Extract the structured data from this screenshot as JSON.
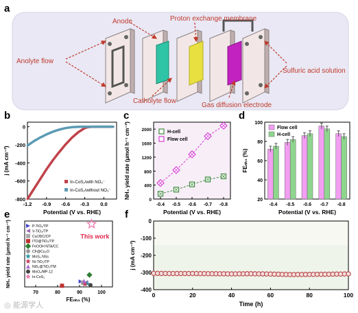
{
  "panel_a": {
    "letter": "a",
    "labels": {
      "anode": "Anode",
      "membrane": "Proton exchange membrane",
      "anolyte": "Anolyte flow",
      "sulfuric": "Sulfuric acid solution",
      "catholyte": "Catholyte flow",
      "gde": "Gas diffusion electrode"
    },
    "colors": {
      "background": "#e9e8f4",
      "label": "#c0392b",
      "plate": "#f2e7e6",
      "anode_sheet": "#2ec4a5",
      "membrane_sheet": "#e8e041",
      "gde_sheet": "#c222c0"
    }
  },
  "chart_data": [
    {
      "id": "b",
      "type": "line",
      "letter": "b",
      "xlabel": "Potential (V vs. RHE)",
      "ylabel": "j (mA cm⁻²)",
      "xlim": [
        -1.2,
        0.2
      ],
      "ylim": [
        -800,
        50
      ],
      "xticks": [
        "-1.2",
        "-0.9",
        "-0.6",
        "-0.3",
        "0.0"
      ],
      "xtick_values": [
        -1.2,
        -0.9,
        -0.6,
        -0.3,
        0.0
      ],
      "yticks": [
        "0",
        "-200",
        "-400",
        "-600",
        "-800"
      ],
      "ytick_values": [
        0,
        -200,
        -400,
        -600,
        -800
      ],
      "legend_position": "bottom-right",
      "series": [
        {
          "name": "In-CoS₂/with NO₃⁻",
          "color": "#c0424a",
          "x": [
            -1.2,
            -1.1,
            -1.0,
            -0.9,
            -0.8,
            -0.7,
            -0.6,
            -0.5,
            -0.4,
            -0.3,
            -0.25,
            -0.2,
            -0.1,
            0.0,
            0.15
          ],
          "y": [
            -800,
            -690,
            -580,
            -470,
            -370,
            -280,
            -195,
            -120,
            -60,
            -15,
            -5,
            -1,
            0,
            0,
            0
          ]
        },
        {
          "name": "In-CoS₂/without NO₃⁻",
          "color": "#5b9ab4",
          "x": [
            -1.2,
            -1.1,
            -1.0,
            -0.9,
            -0.8,
            -0.7,
            -0.6,
            -0.5,
            -0.4,
            -0.3,
            -0.25,
            -0.2,
            -0.1,
            0.0,
            0.15
          ],
          "y": [
            -210,
            -160,
            -120,
            -85,
            -55,
            -32,
            -15,
            -5,
            -1,
            0,
            0,
            0,
            0,
            0,
            0
          ]
        }
      ]
    },
    {
      "id": "c",
      "type": "line",
      "letter": "c",
      "xlabel": "Potential (V vs. RHE)",
      "ylabel": "NH₃ yield rate (μmol h⁻¹ cm⁻²)",
      "categories": [
        "-0.4",
        "-0.5",
        "-0.6",
        "-0.7",
        "-0.8"
      ],
      "ylim": [
        0,
        2200
      ],
      "yticks": [
        "0",
        "400",
        "800",
        "1200",
        "1600",
        "2000"
      ],
      "ytick_values": [
        0,
        400,
        800,
        1200,
        1600,
        2000
      ],
      "legend_position": "top-left",
      "series": [
        {
          "name": "H-cell",
          "color": "#3c8a3c",
          "values": [
            150,
            270,
            420,
            560,
            650
          ]
        },
        {
          "name": "Flow  cell",
          "color": "#d63fd6",
          "values": [
            460,
            830,
            1280,
            1800,
            2100
          ]
        }
      ]
    },
    {
      "id": "d",
      "type": "bar",
      "letter": "d",
      "xlabel": "Potential (V vs. RHE)",
      "ylabel": "FEₙₕ₃ (%)",
      "categories": [
        "-0.4",
        "-0.5",
        "-0.6",
        "-0.7",
        "-0.8"
      ],
      "ylim": [
        20,
        100
      ],
      "yticks": [
        "20",
        "40",
        "60",
        "80",
        "100"
      ],
      "ytick_values": [
        20,
        40,
        60,
        80,
        100
      ],
      "legend_position": "top-left",
      "series": [
        {
          "name": "Flow cell",
          "color": "#f29ef2",
          "values": [
            72,
            79,
            86,
            96,
            88
          ],
          "errors": [
            3,
            3,
            3,
            3,
            3
          ]
        },
        {
          "name": "H-cell",
          "color": "#8ed68e",
          "values": [
            75,
            82,
            88,
            93,
            85
          ],
          "errors": [
            3,
            3,
            3,
            3,
            3
          ]
        }
      ]
    },
    {
      "id": "e",
      "type": "scatter",
      "letter": "e",
      "xlabel": "FEₙₕ₃ (%)",
      "ylabel": "NH₃ yield rate (μmol h⁻¹ cm⁻²)",
      "xlim": [
        65,
        105
      ],
      "xticks": [
        "70",
        "80",
        "90",
        "100"
      ],
      "xtick_values": [
        70,
        80,
        90,
        100
      ],
      "ylim": [
        0,
        2200
      ],
      "annotation": "This work",
      "legend_position": "top-left",
      "series": [
        {
          "name": "P-TiO₂/TP",
          "color": "#4444cc",
          "marker": "triangle-right",
          "x": [
            90.5
          ],
          "y": [
            180
          ]
        },
        {
          "name": "V-TiO₂/TP",
          "color": "#9966aa",
          "marker": "triangle-left",
          "x": [
            93.0
          ],
          "y": [
            160
          ]
        },
        {
          "name": "Cu/JDC/CP",
          "color": "#aaaaaa",
          "marker": "square",
          "x": [
            91.5
          ],
          "y": [
            150
          ]
        },
        {
          "name": "ITO@TiO₂/TP",
          "color": "#c03030",
          "marker": "square",
          "x": [
            82.0
          ],
          "y": [
            40
          ]
        },
        {
          "name": "FeOOH NTA/CC",
          "color": "#2e7d32",
          "marker": "diamond",
          "x": [
            94.5
          ],
          "y": [
            400
          ]
        },
        {
          "name": "CF@Cu₂O",
          "color": "#999999",
          "marker": "circle",
          "x": [
            91.8
          ],
          "y": [
            120
          ]
        },
        {
          "name": "MoS₂ NSs",
          "color": "#3399aa",
          "marker": "star",
          "x": [
            93.5
          ],
          "y": [
            110
          ]
        },
        {
          "name": "Ni-TiO₂/TP",
          "color": "#cc4466",
          "marker": "star",
          "x": [
            92.5
          ],
          "y": [
            90
          ]
        },
        {
          "name": "NiS₂@TiO₂/TM",
          "color": "#aa66cc",
          "marker": "triangle-up",
          "x": [
            92.0
          ],
          "y": [
            200
          ]
        },
        {
          "name": "MoO₂/MP-12",
          "color": "#444444",
          "marker": "circle",
          "x": [
            95.0
          ],
          "y": [
            60
          ]
        },
        {
          "name": "In-CoS₂",
          "color": "#f07cb0",
          "marker": "star-open",
          "x": [
            95.5
          ],
          "y": [
            2100
          ]
        }
      ]
    },
    {
      "id": "f",
      "type": "line",
      "letter": "f",
      "xlabel": "Time (h)",
      "ylabel": "j (mA cm⁻²)",
      "xlim": [
        0,
        100
      ],
      "xticks": [
        "0",
        "20",
        "40",
        "60",
        "80",
        "100"
      ],
      "xtick_values": [
        0,
        20,
        40,
        60,
        80,
        100
      ],
      "ylim": [
        -400,
        0
      ],
      "yticks": [
        "0",
        "-100",
        "-200",
        "-300",
        "-400"
      ],
      "ytick_values": [
        0,
        -100,
        -200,
        -300,
        -400
      ],
      "series": [
        {
          "color": "#b94646",
          "x": [
            0,
            10,
            20,
            30,
            40,
            50,
            60,
            70,
            80,
            90,
            100
          ],
          "y": [
            -305,
            -306,
            -306,
            -307,
            -308,
            -307,
            -309,
            -312,
            -311,
            -310,
            -308
          ]
        }
      ]
    }
  ]
}
